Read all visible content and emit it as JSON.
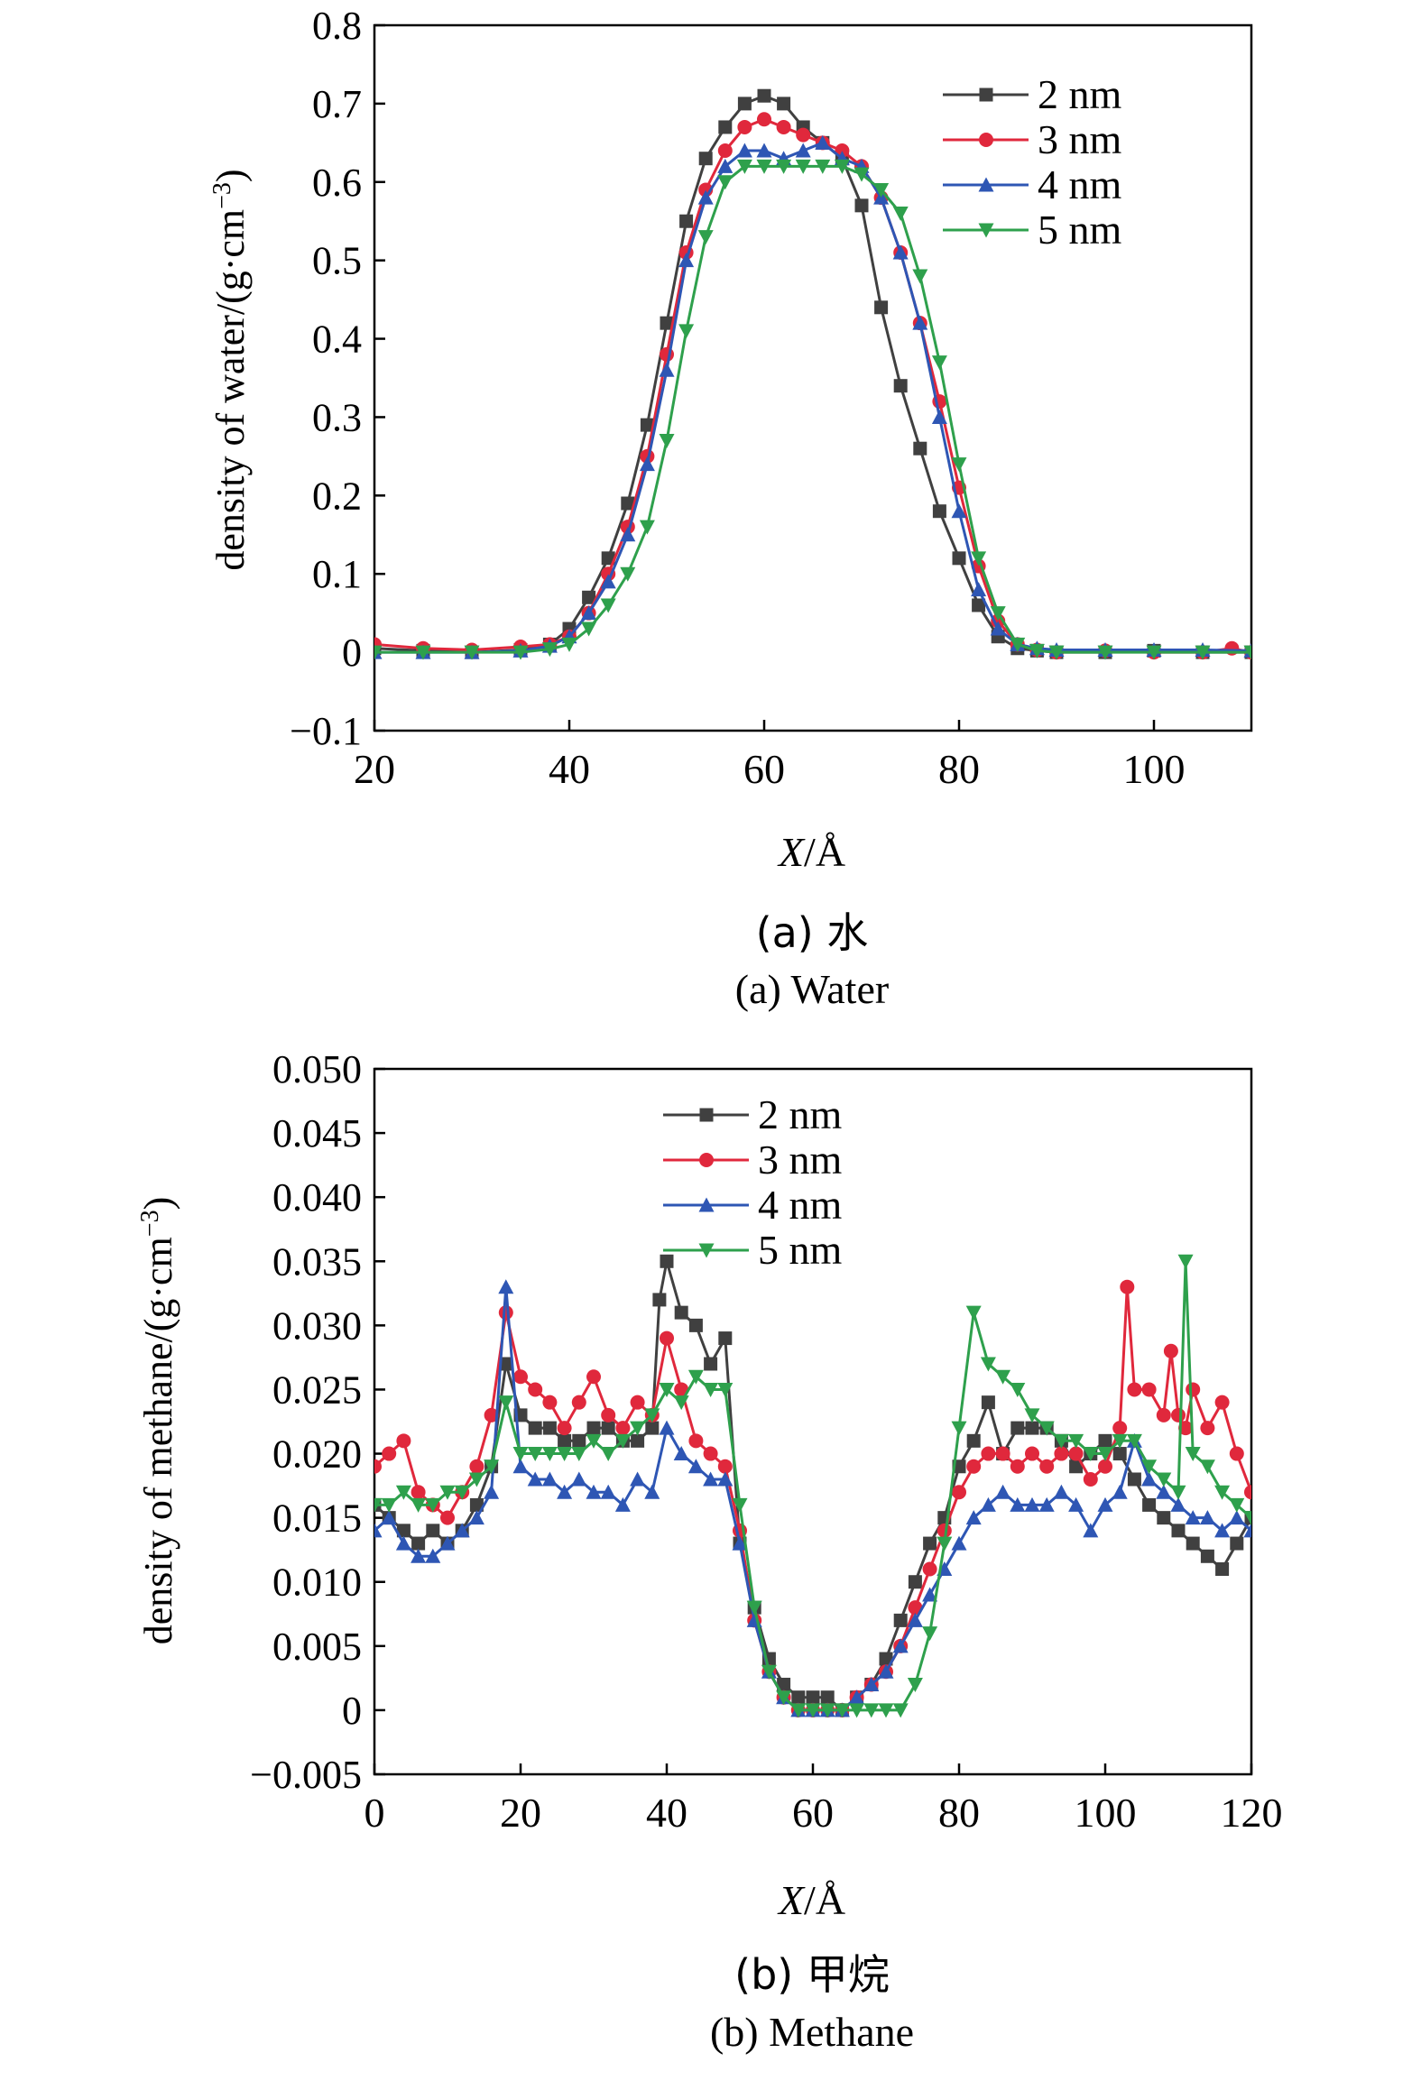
{
  "charts": [
    {
      "caption_cn": "(a) 水",
      "caption_en": "(a) Water",
      "ylabel": "density of water/(g·cm",
      "ylabel_sup": "−3",
      "ylabel_close": ")",
      "xlabel_var": "X",
      "xlabel_unit": "/Å",
      "xticks": [
        "20",
        "40",
        "60",
        "80",
        "100"
      ],
      "yticks": [
        "0.8",
        "0.7",
        "0.6",
        "0.5",
        "0.4",
        "0.3",
        "0.2",
        "0.1",
        "0",
        "−0.1"
      ],
      "legend": [
        "2 nm",
        "3 nm",
        "4 nm",
        "5 nm"
      ]
    },
    {
      "caption_cn": "(b) 甲烷",
      "caption_en": "(b) Methane",
      "ylabel": "density of methane/(g·cm",
      "ylabel_sup": "−3",
      "ylabel_close": ")",
      "xlabel_var": "X",
      "xlabel_unit": "/Å",
      "xticks": [
        "0",
        "20",
        "40",
        "60",
        "80",
        "100",
        "120"
      ],
      "yticks": [
        "0.050",
        "0.045",
        "0.040",
        "0.035",
        "0.030",
        "0.025",
        "0.020",
        "0.015",
        "0.010",
        "0.005",
        "0",
        "−0.005"
      ],
      "legend": [
        "2 nm",
        "3 nm",
        "4 nm",
        "5 nm"
      ]
    }
  ],
  "chart_data": [
    {
      "type": "line",
      "xlabel": "X/Å",
      "ylabel": "density of water/(g·cm−3)",
      "xlim": [
        20,
        110
      ],
      "ylim": [
        -0.1,
        0.8
      ],
      "legend_position": "top-right",
      "grid": false,
      "series": [
        {
          "name": "2 nm",
          "color": "#404040",
          "marker": "square",
          "x": [
            20,
            25,
            30,
            35,
            38,
            40,
            42,
            44,
            46,
            48,
            50,
            52,
            54,
            56,
            58,
            60,
            62,
            64,
            66,
            68,
            70,
            72,
            74,
            76,
            78,
            80,
            82,
            84,
            86,
            88,
            90,
            95,
            100,
            105,
            110
          ],
          "y": [
            0.005,
            0.002,
            0.0,
            0.003,
            0.01,
            0.03,
            0.07,
            0.12,
            0.19,
            0.29,
            0.42,
            0.55,
            0.63,
            0.67,
            0.7,
            0.71,
            0.7,
            0.67,
            0.65,
            0.63,
            0.57,
            0.44,
            0.34,
            0.26,
            0.18,
            0.12,
            0.06,
            0.02,
            0.005,
            0.002,
            0.0,
            0.0,
            0.002,
            0.0,
            0.0
          ]
        },
        {
          "name": "3 nm",
          "color": "#e0283c",
          "marker": "circle",
          "x": [
            20,
            25,
            30,
            35,
            38,
            40,
            42,
            44,
            46,
            48,
            50,
            52,
            54,
            56,
            58,
            60,
            62,
            64,
            66,
            68,
            70,
            72,
            74,
            76,
            78,
            80,
            82,
            84,
            86,
            88,
            90,
            95,
            100,
            105,
            108,
            110
          ],
          "y": [
            0.01,
            0.005,
            0.003,
            0.007,
            0.01,
            0.02,
            0.05,
            0.1,
            0.16,
            0.25,
            0.38,
            0.51,
            0.59,
            0.64,
            0.67,
            0.68,
            0.67,
            0.66,
            0.65,
            0.64,
            0.62,
            0.58,
            0.51,
            0.42,
            0.32,
            0.21,
            0.11,
            0.04,
            0.01,
            0.003,
            0.0,
            0.002,
            0.0,
            0.0,
            0.005,
            0.0
          ]
        },
        {
          "name": "4 nm",
          "color": "#2e56b4",
          "marker": "triangle-up",
          "x": [
            20,
            25,
            30,
            35,
            38,
            40,
            42,
            44,
            46,
            48,
            50,
            52,
            54,
            56,
            58,
            60,
            62,
            64,
            66,
            68,
            70,
            72,
            74,
            76,
            78,
            80,
            82,
            84,
            86,
            88,
            90,
            95,
            100,
            105,
            110
          ],
          "y": [
            0.0,
            0.0,
            0.0,
            0.002,
            0.008,
            0.02,
            0.05,
            0.09,
            0.15,
            0.24,
            0.36,
            0.5,
            0.58,
            0.62,
            0.64,
            0.64,
            0.63,
            0.64,
            0.65,
            0.63,
            0.62,
            0.58,
            0.51,
            0.42,
            0.3,
            0.18,
            0.08,
            0.03,
            0.01,
            0.005,
            0.003,
            0.003,
            0.003,
            0.003,
            0.002
          ]
        },
        {
          "name": "5 nm",
          "color": "#2ea04c",
          "marker": "triangle-down",
          "x": [
            20,
            25,
            30,
            35,
            38,
            40,
            42,
            44,
            46,
            48,
            50,
            52,
            54,
            56,
            58,
            60,
            62,
            64,
            66,
            68,
            70,
            72,
            74,
            76,
            78,
            80,
            82,
            84,
            86,
            88,
            90,
            95,
            100,
            105,
            110
          ],
          "y": [
            0.0,
            0.0,
            0.0,
            0.0,
            0.004,
            0.01,
            0.03,
            0.06,
            0.1,
            0.16,
            0.27,
            0.41,
            0.53,
            0.6,
            0.62,
            0.62,
            0.62,
            0.62,
            0.62,
            0.62,
            0.61,
            0.59,
            0.56,
            0.48,
            0.37,
            0.24,
            0.12,
            0.05,
            0.01,
            0.002,
            0.0,
            0.0,
            0.0,
            0.0,
            0.0
          ]
        }
      ]
    },
    {
      "type": "line",
      "xlabel": "X/Å",
      "ylabel": "density of methane/(g·cm−3)",
      "xlim": [
        0,
        120
      ],
      "ylim": [
        -0.005,
        0.05
      ],
      "legend_position": "top-center",
      "grid": false,
      "series": [
        {
          "name": "2 nm",
          "color": "#404040",
          "marker": "square",
          "x": [
            0,
            2,
            4,
            6,
            8,
            10,
            12,
            14,
            16,
            18,
            20,
            22,
            24,
            26,
            28,
            30,
            32,
            34,
            36,
            38,
            39,
            40,
            42,
            44,
            46,
            48,
            50,
            52,
            54,
            56,
            58,
            60,
            62,
            64,
            66,
            68,
            70,
            72,
            74,
            76,
            78,
            80,
            82,
            84,
            86,
            88,
            90,
            92,
            94,
            96,
            98,
            100,
            102,
            104,
            106,
            108,
            110,
            112,
            114,
            116,
            118,
            120
          ],
          "y": [
            0.016,
            0.015,
            0.014,
            0.013,
            0.014,
            0.013,
            0.014,
            0.016,
            0.019,
            0.027,
            0.023,
            0.022,
            0.022,
            0.021,
            0.021,
            0.022,
            0.022,
            0.021,
            0.021,
            0.022,
            0.032,
            0.035,
            0.031,
            0.03,
            0.027,
            0.029,
            0.013,
            0.008,
            0.004,
            0.002,
            0.001,
            0.001,
            0.001,
            0.0,
            0.001,
            0.002,
            0.004,
            0.007,
            0.01,
            0.013,
            0.015,
            0.019,
            0.021,
            0.024,
            0.02,
            0.022,
            0.022,
            0.022,
            0.021,
            0.019,
            0.02,
            0.021,
            0.02,
            0.018,
            0.016,
            0.015,
            0.014,
            0.013,
            0.012,
            0.011,
            0.013,
            0.015
          ]
        },
        {
          "name": "3 nm",
          "color": "#e0283c",
          "marker": "circle",
          "x": [
            0,
            2,
            4,
            6,
            8,
            10,
            12,
            14,
            16,
            18,
            20,
            22,
            24,
            26,
            28,
            30,
            32,
            34,
            36,
            38,
            40,
            42,
            44,
            46,
            48,
            50,
            52,
            54,
            56,
            58,
            60,
            62,
            64,
            66,
            68,
            70,
            72,
            74,
            76,
            78,
            80,
            82,
            84,
            86,
            88,
            90,
            92,
            94,
            96,
            98,
            100,
            102,
            103,
            104,
            106,
            108,
            109,
            110,
            111,
            112,
            114,
            116,
            118,
            120
          ],
          "y": [
            0.019,
            0.02,
            0.021,
            0.017,
            0.016,
            0.015,
            0.017,
            0.019,
            0.023,
            0.031,
            0.026,
            0.025,
            0.024,
            0.022,
            0.024,
            0.026,
            0.023,
            0.022,
            0.024,
            0.023,
            0.029,
            0.025,
            0.021,
            0.02,
            0.019,
            0.014,
            0.007,
            0.003,
            0.001,
            0.0,
            0.0,
            0.0,
            0.0,
            0.001,
            0.002,
            0.003,
            0.005,
            0.008,
            0.011,
            0.014,
            0.017,
            0.019,
            0.02,
            0.02,
            0.019,
            0.02,
            0.019,
            0.02,
            0.02,
            0.018,
            0.019,
            0.022,
            0.033,
            0.025,
            0.025,
            0.023,
            0.028,
            0.023,
            0.022,
            0.025,
            0.022,
            0.024,
            0.02,
            0.017
          ]
        },
        {
          "name": "4 nm",
          "color": "#2e56b4",
          "marker": "triangle-up",
          "x": [
            0,
            2,
            4,
            6,
            8,
            10,
            12,
            14,
            16,
            18,
            20,
            22,
            24,
            26,
            28,
            30,
            32,
            34,
            36,
            38,
            40,
            42,
            44,
            46,
            48,
            50,
            52,
            54,
            56,
            58,
            60,
            62,
            64,
            66,
            68,
            70,
            72,
            74,
            76,
            78,
            80,
            82,
            84,
            86,
            88,
            90,
            92,
            94,
            96,
            98,
            100,
            102,
            104,
            106,
            108,
            110,
            112,
            114,
            116,
            118,
            120
          ],
          "y": [
            0.014,
            0.015,
            0.013,
            0.012,
            0.012,
            0.013,
            0.014,
            0.015,
            0.017,
            0.033,
            0.019,
            0.018,
            0.018,
            0.017,
            0.018,
            0.017,
            0.017,
            0.016,
            0.018,
            0.017,
            0.022,
            0.02,
            0.019,
            0.018,
            0.018,
            0.013,
            0.007,
            0.003,
            0.001,
            0.0,
            0.0,
            0.0,
            0.0,
            0.001,
            0.002,
            0.003,
            0.005,
            0.007,
            0.009,
            0.011,
            0.013,
            0.015,
            0.016,
            0.017,
            0.016,
            0.016,
            0.016,
            0.017,
            0.016,
            0.014,
            0.016,
            0.017,
            0.021,
            0.018,
            0.017,
            0.016,
            0.015,
            0.015,
            0.014,
            0.015,
            0.014
          ]
        },
        {
          "name": "5 nm",
          "color": "#2ea04c",
          "marker": "triangle-down",
          "x": [
            0,
            2,
            4,
            6,
            8,
            10,
            12,
            14,
            16,
            18,
            20,
            22,
            24,
            26,
            28,
            30,
            32,
            34,
            36,
            38,
            40,
            42,
            44,
            46,
            48,
            50,
            52,
            54,
            56,
            58,
            60,
            62,
            64,
            66,
            68,
            70,
            72,
            74,
            76,
            78,
            80,
            82,
            84,
            86,
            88,
            90,
            92,
            94,
            96,
            98,
            100,
            102,
            104,
            106,
            108,
            110,
            111,
            112,
            114,
            116,
            118,
            120
          ],
          "y": [
            0.016,
            0.016,
            0.017,
            0.016,
            0.016,
            0.017,
            0.017,
            0.018,
            0.019,
            0.024,
            0.02,
            0.02,
            0.02,
            0.02,
            0.02,
            0.021,
            0.02,
            0.021,
            0.022,
            0.023,
            0.025,
            0.024,
            0.026,
            0.025,
            0.025,
            0.016,
            0.008,
            0.003,
            0.001,
            0.0,
            0.0,
            0.0,
            0.0,
            0.0,
            0.0,
            0.0,
            0.0,
            0.002,
            0.006,
            0.013,
            0.022,
            0.031,
            0.027,
            0.026,
            0.025,
            0.023,
            0.022,
            0.021,
            0.021,
            0.02,
            0.02,
            0.021,
            0.021,
            0.019,
            0.018,
            0.017,
            0.035,
            0.02,
            0.019,
            0.017,
            0.016,
            0.015
          ]
        }
      ]
    }
  ]
}
